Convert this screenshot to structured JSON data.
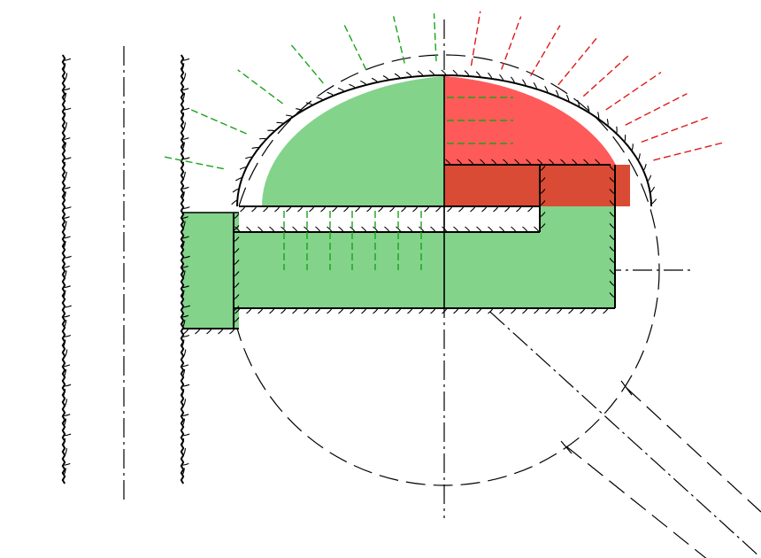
{
  "colors": {
    "background": "#ffffff",
    "green_region": "#83d38b",
    "red_region": "#ff5a5a",
    "dark_red_region": "#d94b35",
    "outline": "#000000",
    "green_leader": "#1aa31a",
    "red_leader": "#e01818",
    "construction_line": "#000000"
  },
  "icons": {
    "hatch_mark": "surface-hatch-tick"
  }
}
